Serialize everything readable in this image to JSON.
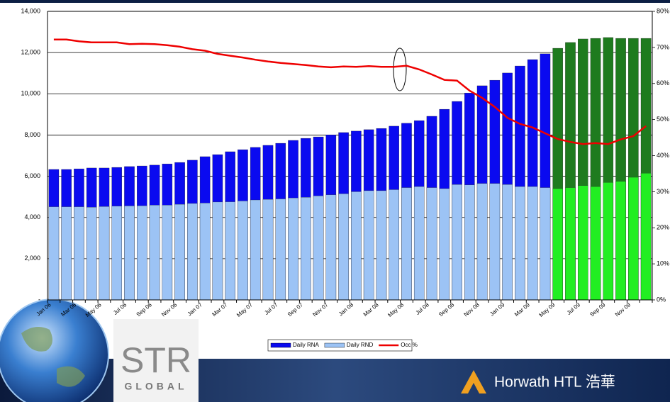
{
  "chart_data": {
    "type": "bar_line",
    "categories": [
      "Jan 06",
      null,
      "Mar 06",
      null,
      "May 06",
      null,
      "Jul 06",
      null,
      "Sep 06",
      null,
      "Nov 06",
      null,
      "Jan 07",
      null,
      "Mar 07",
      null,
      "May 07",
      null,
      "Jul 07",
      null,
      "Sep 07",
      null,
      "Nov 07",
      null,
      "Jan 08",
      null,
      "Mar 08",
      null,
      "May 08",
      null,
      "Jul 08",
      null,
      "Sep 08",
      null,
      "Nov 08",
      null,
      "Jan 09",
      null,
      "Mar 09",
      null,
      "May 09",
      null,
      "Jul 09",
      null,
      "Sep 09",
      null,
      "Nov 09",
      null
    ],
    "forecast_start": "May 09",
    "series": [
      {
        "name": "Daily RNA",
        "kind": "bar",
        "color": "#0a0af0",
        "forecast_color": "#1e7b1e",
        "values": [
          6330,
          6330,
          6360,
          6400,
          6400,
          6430,
          6470,
          6500,
          6540,
          6600,
          6670,
          6780,
          6950,
          7050,
          7190,
          7290,
          7400,
          7500,
          7600,
          7740,
          7840,
          7910,
          8010,
          8120,
          8190,
          8260,
          8320,
          8430,
          8570,
          8700,
          8910,
          9250,
          9630,
          10040,
          10390,
          10660,
          11010,
          11350,
          11660,
          11940,
          12210,
          12490,
          12660,
          12690,
          12730,
          12690,
          12690,
          12690
        ]
      },
      {
        "name": "Daily RND",
        "kind": "bar",
        "color": "#9cc3f5",
        "forecast_color": "#22ee22",
        "values": [
          4520,
          4520,
          4520,
          4500,
          4530,
          4550,
          4560,
          4570,
          4600,
          4600,
          4640,
          4680,
          4700,
          4750,
          4760,
          4800,
          4850,
          4880,
          4900,
          4950,
          4980,
          5050,
          5100,
          5150,
          5250,
          5300,
          5300,
          5350,
          5450,
          5500,
          5450,
          5400,
          5600,
          5580,
          5650,
          5650,
          5600,
          5500,
          5500,
          5450,
          5400,
          5450,
          5550,
          5500,
          5700,
          5750,
          5950,
          6150
        ]
      },
      {
        "name": "Occ %",
        "kind": "line",
        "axis": "y2",
        "color": "#ee0000",
        "values": [
          72.2,
          72.2,
          71.7,
          71.4,
          71.4,
          71.4,
          70.9,
          71.0,
          70.9,
          70.6,
          70.2,
          69.5,
          69.1,
          68.2,
          67.7,
          67.2,
          66.6,
          66.1,
          65.7,
          65.4,
          65.1,
          64.7,
          64.5,
          64.7,
          64.6,
          64.8,
          64.6,
          64.6,
          64.9,
          63.9,
          62.5,
          61.0,
          60.8,
          58.0,
          56.0,
          53.5,
          50.5,
          48.8,
          47.8,
          46.2,
          44.6,
          43.8,
          43.2,
          43.5,
          43.2,
          44.5,
          45.4,
          48.2
        ]
      }
    ],
    "ylim": [
      0,
      14000
    ],
    "yticks": [
      {
        "value": 0,
        "label": "-"
      },
      {
        "value": 2000,
        "label": "2,000"
      },
      {
        "value": 4000,
        "label": "4,000"
      },
      {
        "value": 6000,
        "label": "6,000"
      },
      {
        "value": 8000,
        "label": "8,000"
      },
      {
        "value": 10000,
        "label": "10,000"
      },
      {
        "value": 12000,
        "label": "12,000"
      },
      {
        "value": 14000,
        "label": "14,000"
      }
    ],
    "y2lim": [
      0,
      80
    ],
    "y2ticks": [
      {
        "value": 0,
        "label": "0%"
      },
      {
        "value": 10,
        "label": "10%"
      },
      {
        "value": 20,
        "label": "20%"
      },
      {
        "value": 30,
        "label": "30%"
      },
      {
        "value": 40,
        "label": "40%"
      },
      {
        "value": 50,
        "label": "50%"
      },
      {
        "value": 60,
        "label": "60%"
      },
      {
        "value": 70,
        "label": "70%"
      },
      {
        "value": 80,
        "label": "80%"
      }
    ],
    "grid": true,
    "legend": "bottom"
  },
  "logos": {
    "str": "STR",
    "str_sub": "GLOBAL",
    "horwath": "Horwath HTL 浩華"
  }
}
